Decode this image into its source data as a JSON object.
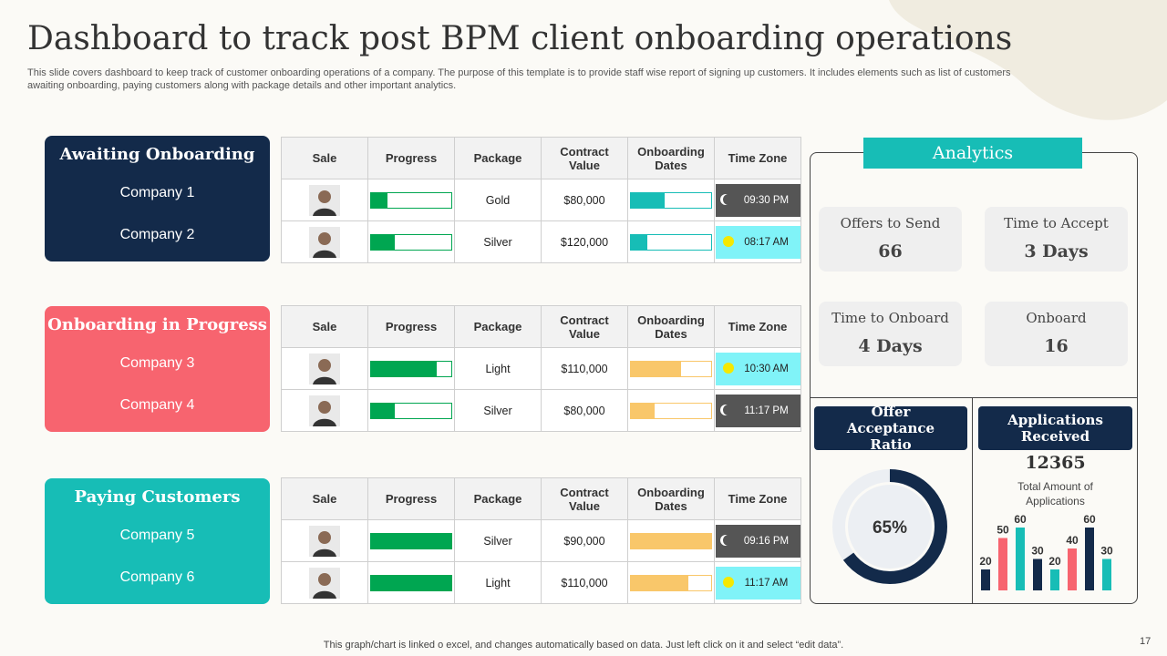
{
  "header": {
    "title": "Dashboard to track post BPM client onboarding operations",
    "description": "This slide covers dashboard to keep track of customer onboarding  operations of a company. The purpose of this template is to provide staff wise report of signing up customers. It includes elements such as list of customers awaiting onboarding, paying customers along with package details and other important analytics."
  },
  "columns": [
    "Sale",
    "Progress",
    "Package",
    "Contract Value",
    "Onboarding Dates",
    "Time Zone"
  ],
  "groups": [
    {
      "title": "Awaiting Onboarding",
      "color": "#132a4a",
      "companies": [
        "Company 1",
        "Company 2"
      ],
      "progress_color": "#00a651",
      "dates_color": "#17bdb6",
      "rows": [
        {
          "progress": 20,
          "package": "Gold",
          "value": "$80,000",
          "dates": 42,
          "time": "09:30 PM",
          "zone": "night"
        },
        {
          "progress": 30,
          "package": "Silver",
          "value": "$120,000",
          "dates": 20,
          "time": "08:17 AM",
          "zone": "day"
        }
      ]
    },
    {
      "title": "Onboarding in Progress",
      "color": "#f7646f",
      "companies": [
        "Company 3",
        "Company 4"
      ],
      "progress_color": "#00a651",
      "dates_color": "#f9c76a",
      "rows": [
        {
          "progress": 82,
          "package": "Light",
          "value": "$110,000",
          "dates": 62,
          "time": "10:30 AM",
          "zone": "day"
        },
        {
          "progress": 30,
          "package": "Silver",
          "value": "$80,000",
          "dates": 30,
          "time": "11:17 PM",
          "zone": "night"
        }
      ]
    },
    {
      "title": "Paying Customers",
      "color": "#17bdb6",
      "companies": [
        "Company 5",
        "Company 6"
      ],
      "progress_color": "#00a651",
      "dates_color": "#f9c76a",
      "rows": [
        {
          "progress": 100,
          "package": "Silver",
          "value": "$90,000",
          "dates": 100,
          "time": "09:16 PM",
          "zone": "night"
        },
        {
          "progress": 100,
          "package": "Light",
          "value": "$110,000",
          "dates": 72,
          "time": "11:17 AM",
          "zone": "day"
        }
      ]
    }
  ],
  "analytics": {
    "title": "Analytics",
    "kpis": [
      {
        "label": "Offers to Send",
        "value": "66"
      },
      {
        "label": "Time to Accept",
        "value": "3 Days"
      },
      {
        "label": "Time to Onboard",
        "value": "4 Days"
      },
      {
        "label": "Onboard",
        "value": "16"
      }
    ],
    "ratio": {
      "title": "Offer Acceptance Ratio",
      "value": 65,
      "value_label": "65%"
    },
    "applications": {
      "title": "Applications Received",
      "total": "12365",
      "total_label": "Total Amount of Applications",
      "bars": [
        {
          "value": 20,
          "color": "#132a4a"
        },
        {
          "value": 50,
          "color": "#f7646f"
        },
        {
          "value": 60,
          "color": "#17bdb6"
        },
        {
          "value": 30,
          "color": "#132a4a"
        },
        {
          "value": 20,
          "color": "#17bdb6"
        },
        {
          "value": 40,
          "color": "#f7646f"
        },
        {
          "value": 60,
          "color": "#132a4a"
        },
        {
          "value": 30,
          "color": "#17bdb6"
        }
      ]
    }
  },
  "footer": {
    "note": "This graph/chart is linked o excel, and changes automatically based on data. Just left click on it and select “edit data”.",
    "page": "17"
  }
}
